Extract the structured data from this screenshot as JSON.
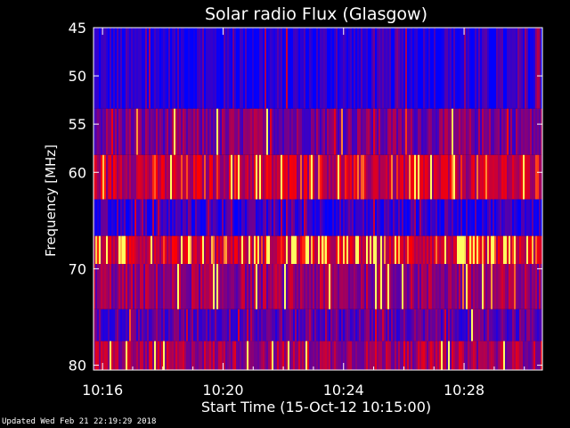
{
  "chart_data": {
    "type": "heatmap",
    "title": "Solar radio Flux (Glasgow)",
    "xlabel": "Start Time (15-Oct-12 10:15:00)",
    "ylabel": "Frequency [MHz]",
    "xlim_minutes": [
      10.25,
      10.505
    ],
    "x_ticks": [
      {
        "label": "10:16",
        "value": 16
      },
      {
        "label": "10:20",
        "value": 20
      },
      {
        "label": "10:24",
        "value": 24
      },
      {
        "label": "10:28",
        "value": 28
      }
    ],
    "x_range_minutes": [
      15.7,
      30.6
    ],
    "ylim": [
      45,
      80.5
    ],
    "y_inverted": true,
    "y_ticks": [
      45,
      50,
      55,
      60,
      70,
      80
    ],
    "bands": [
      {
        "from": 45,
        "to": 53.4,
        "intensity": 0.12
      },
      {
        "from": 53.4,
        "to": 58.2,
        "intensity": 0.45
      },
      {
        "from": 58.2,
        "to": 62.8,
        "intensity": 0.72
      },
      {
        "from": 62.8,
        "to": 66.6,
        "intensity": 0.2
      },
      {
        "from": 66.6,
        "to": 69.5,
        "intensity": 0.8
      },
      {
        "from": 69.5,
        "to": 74.2,
        "intensity": 0.55
      },
      {
        "from": 74.2,
        "to": 77.5,
        "intensity": 0.35
      },
      {
        "from": 77.5,
        "to": 80.5,
        "intensity": 0.6
      }
    ],
    "colormap": {
      "low": "#0000ff",
      "mid": "#800080",
      "high": "#ff0000",
      "peak": "#ffff60"
    },
    "grid": false
  },
  "footer": "Updated Wed Feb 21 22:19:29 2018"
}
